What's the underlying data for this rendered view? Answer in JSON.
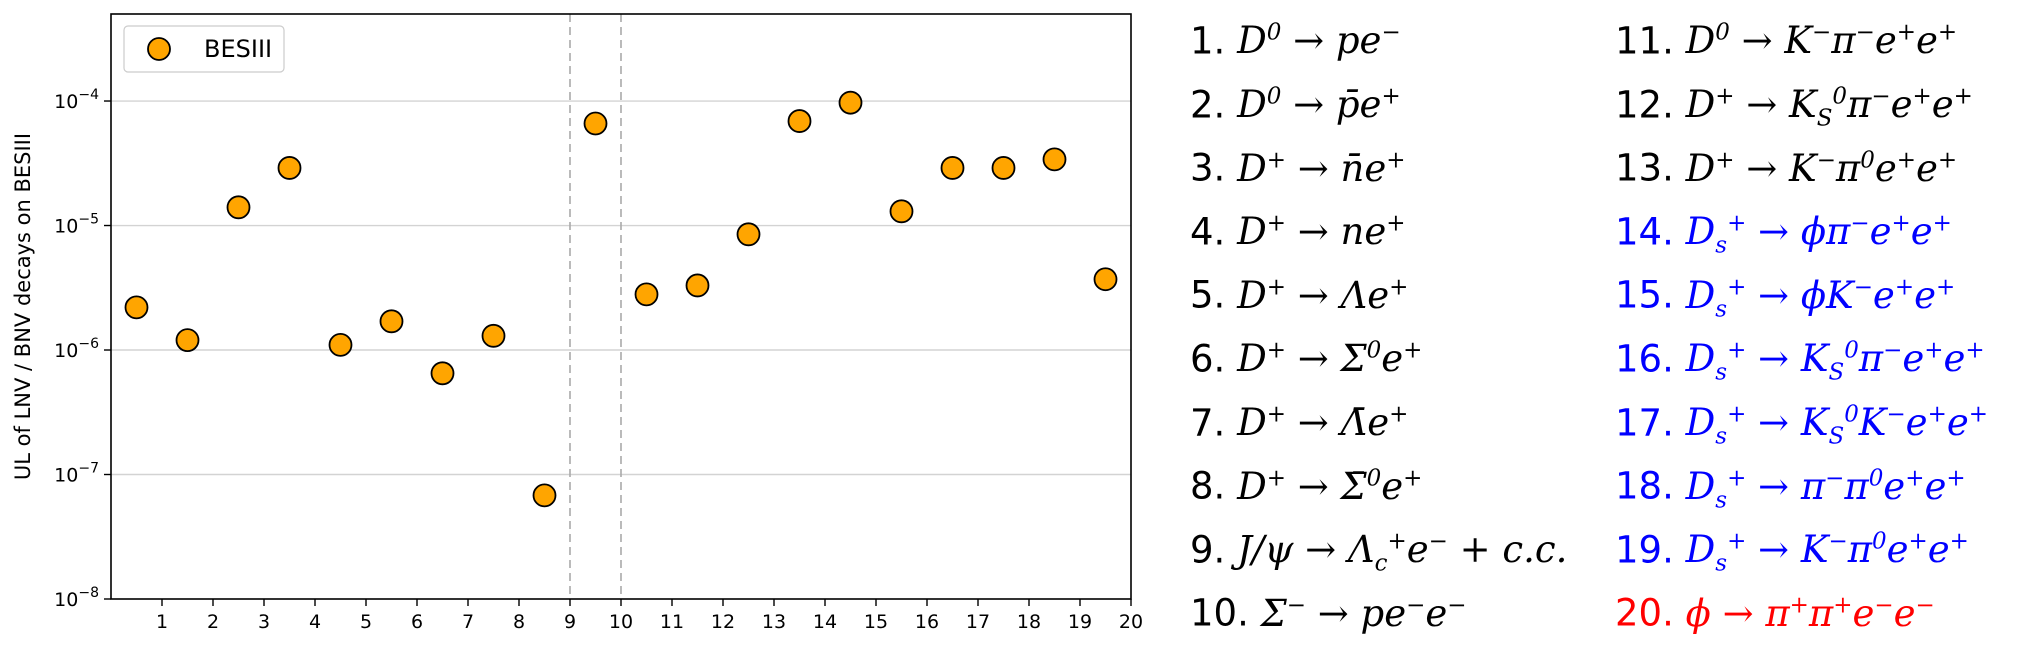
{
  "chart_data": {
    "type": "scatter",
    "ylabel": "UL of LNV / BNV decays on BESIII",
    "xlabel": "",
    "yscale": "log",
    "ylim": [
      1e-08,
      0.0005
    ],
    "xlim": [
      0,
      20
    ],
    "x_ticks": [
      "1",
      "2",
      "3",
      "4",
      "5",
      "6",
      "7",
      "8",
      "9",
      "10",
      "11",
      "12",
      "13",
      "14",
      "15",
      "16",
      "17",
      "18",
      "19",
      "20"
    ],
    "y_ticks": [
      {
        "value": 1e-08,
        "base": "10",
        "exp": "−8"
      },
      {
        "value": 1e-07,
        "base": "10",
        "exp": "−7"
      },
      {
        "value": 1e-06,
        "base": "10",
        "exp": "−6"
      },
      {
        "value": 1e-05,
        "base": "10",
        "exp": "−5"
      },
      {
        "value": 0.0001,
        "base": "10",
        "exp": "−4"
      }
    ],
    "grid": "horizontal",
    "vertical_dashed_lines": [
      9,
      10
    ],
    "legend": {
      "position": "top-left"
    },
    "series": [
      {
        "name": "BESIII",
        "color": "#FFA500",
        "edge_color": "#000000",
        "x": [
          0.5,
          1.5,
          2.5,
          3.5,
          4.5,
          5.5,
          6.5,
          7.5,
          8.5,
          9.5,
          10.5,
          11.5,
          12.5,
          13.5,
          14.5,
          15.5,
          16.5,
          17.5,
          18.5,
          19.5
        ],
        "y": [
          2.2e-06,
          1.2e-06,
          1.4e-05,
          2.9e-05,
          1.1e-06,
          1.7e-06,
          6.5e-07,
          1.3e-06,
          6.8e-08,
          6.6e-05,
          2.8e-06,
          3.3e-06,
          8.5e-06,
          6.9e-05,
          9.7e-05,
          1.3e-05,
          2.9e-05,
          2.9e-05,
          3.4e-05,
          3.7e-06
        ]
      }
    ]
  },
  "decay_list": [
    {
      "num": "1.",
      "html": "D<sup>0</sup> → pe<sup>−</sup>",
      "color": "#000000"
    },
    {
      "num": "2.",
      "html": "D<sup>0</sup> → p̄e<sup>+</sup>",
      "color": "#000000"
    },
    {
      "num": "3.",
      "html": "D<sup>+</sup> → n̄e<sup>+</sup>",
      "color": "#000000"
    },
    {
      "num": "4.",
      "html": "D<sup>+</sup> → ne<sup>+</sup>",
      "color": "#000000"
    },
    {
      "num": "5.",
      "html": "D<sup>+</sup> → Λe<sup>+</sup>",
      "color": "#000000"
    },
    {
      "num": "6.",
      "html": "D<sup>+</sup> → Σ<sup>0</sup>e<sup>+</sup>",
      "color": "#000000"
    },
    {
      "num": "7.",
      "html": "D<sup>+</sup> → Λ̄e<sup>+</sup>",
      "color": "#000000"
    },
    {
      "num": "8.",
      "html": "D<sup>+</sup> → Σ̄<sup>0</sup>e<sup>+</sup>",
      "color": "#000000"
    },
    {
      "num": "9.",
      "html": "J/ψ → Λ<sub>c</sub><sup>+</sup>e<sup>−</sup> + c.c.",
      "color": "#000000"
    },
    {
      "num": "10.",
      "html": "Σ<sup>−</sup> → pe<sup>−</sup>e<sup>−</sup>",
      "color": "#000000"
    },
    {
      "num": "11.",
      "html": "D<sup>0</sup> → K<sup>−</sup>π<sup>−</sup>e<sup>+</sup>e<sup>+</sup>",
      "color": "#000000"
    },
    {
      "num": "12.",
      "html": "D<sup>+</sup> → K<sub>S</sub><sup>0</sup>π<sup>−</sup>e<sup>+</sup>e<sup>+</sup>",
      "color": "#000000"
    },
    {
      "num": "13.",
      "html": "D<sup>+</sup> → K<sup>−</sup>π<sup>0</sup>e<sup>+</sup>e<sup>+</sup>",
      "color": "#000000"
    },
    {
      "num": "14.",
      "html": "D<sub>s</sub><sup>+</sup> → ϕπ<sup>−</sup>e<sup>+</sup>e<sup>+</sup>",
      "color": "#0000FF"
    },
    {
      "num": "15.",
      "html": "D<sub>s</sub><sup>+</sup> → ϕK<sup>−</sup>e<sup>+</sup>e<sup>+</sup>",
      "color": "#0000FF"
    },
    {
      "num": "16.",
      "html": "D<sub>s</sub><sup>+</sup> → K<sub>S</sub><sup>0</sup>π<sup>−</sup>e<sup>+</sup>e<sup>+</sup>",
      "color": "#0000FF"
    },
    {
      "num": "17.",
      "html": "D<sub>s</sub><sup>+</sup> → K<sub>S</sub><sup>0</sup>K<sup>−</sup>e<sup>+</sup>e<sup>+</sup>",
      "color": "#0000FF"
    },
    {
      "num": "18.",
      "html": "D<sub>s</sub><sup>+</sup> → π<sup>−</sup>π<sup>0</sup>e<sup>+</sup>e<sup>+</sup>",
      "color": "#0000FF"
    },
    {
      "num": "19.",
      "html": "D<sub>s</sub><sup>+</sup> → K<sup>−</sup>π<sup>0</sup>e<sup>+</sup>e<sup>+</sup>",
      "color": "#0000FF"
    },
    {
      "num": "20.",
      "html": "ϕ → π<sup>+</sup>π<sup>+</sup>e<sup>−</sup>e<sup>−</sup>",
      "color": "#FF0000"
    }
  ]
}
